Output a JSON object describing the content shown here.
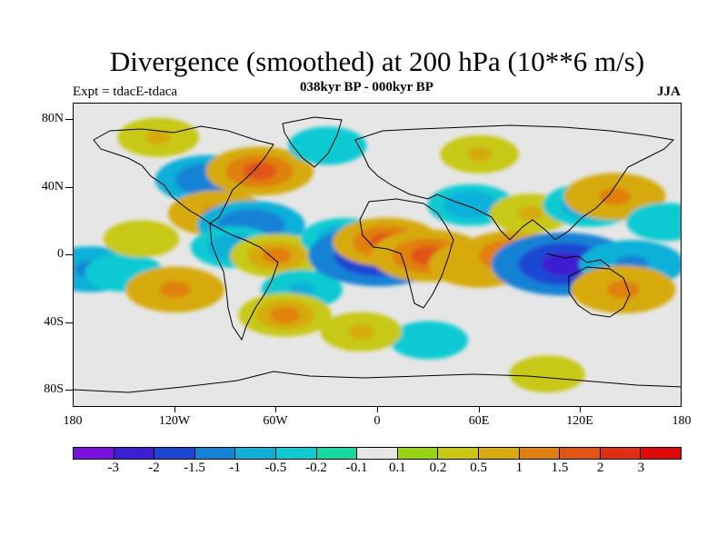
{
  "title": "Divergence (smoothed) at 200 hPa (10**6 m/s)",
  "subtitle": "038kyr BP - 000kyr BP",
  "left_label": "Expt = tdacE-tdaca",
  "right_label": "JJA",
  "y_axis_labels": [
    "80N",
    "40N",
    "0",
    "40S",
    "80S"
  ],
  "x_axis_labels": [
    "180",
    "120W",
    "60W",
    "0",
    "60E",
    "120E",
    "180"
  ],
  "colorbar": {
    "colors": [
      "#7a10dc",
      "#3c1ed2",
      "#1c46d2",
      "#1482d6",
      "#10b0d8",
      "#10cad2",
      "#18d6a0",
      "#e6e6e6",
      "#9ad214",
      "#c8c814",
      "#d6aa10",
      "#e08010",
      "#e05414",
      "#e02e12",
      "#e00808"
    ],
    "labels": [
      "-3",
      "-2",
      "-1.5",
      "-1",
      "-0.5",
      "-0.2",
      "-0.1",
      "0.1",
      "0.2",
      "0.5",
      "1",
      "1.5",
      "2",
      "3"
    ]
  },
  "chart_data": {
    "type": "heatmap",
    "variable": "Divergence (smoothed) at 200 hPa",
    "units": "10**6 m/s",
    "season": "JJA",
    "xlim": [
      -180,
      180
    ],
    "ylim": [
      -90,
      90
    ],
    "levels": [
      -3,
      -2,
      -1.5,
      -1,
      -0.5,
      -0.2,
      -0.1,
      0.1,
      0.2,
      0.5,
      1,
      1.5,
      2,
      3
    ],
    "anomalies": [
      {
        "lon": -170,
        "lat": -8,
        "value": -1.2
      },
      {
        "lon": -150,
        "lat": -10,
        "value": -0.5
      },
      {
        "lon": -120,
        "lat": -20,
        "value": 1.2
      },
      {
        "lon": -140,
        "lat": 10,
        "value": 0.4
      },
      {
        "lon": -100,
        "lat": 45,
        "value": -1.5
      },
      {
        "lon": -70,
        "lat": 50,
        "value": 1.5
      },
      {
        "lon": -95,
        "lat": 25,
        "value": 1.2
      },
      {
        "lon": -75,
        "lat": 18,
        "value": -1.5
      },
      {
        "lon": -85,
        "lat": 5,
        "value": -0.8
      },
      {
        "lon": -60,
        "lat": 0,
        "value": 1.0
      },
      {
        "lon": -45,
        "lat": -20,
        "value": -0.6
      },
      {
        "lon": -55,
        "lat": -35,
        "value": 1.0
      },
      {
        "lon": -20,
        "lat": 10,
        "value": -0.8
      },
      {
        "lon": 0,
        "lat": 0,
        "value": -2.6
      },
      {
        "lon": 5,
        "lat": 8,
        "value": 1.5
      },
      {
        "lon": 30,
        "lat": 0,
        "value": 1.8
      },
      {
        "lon": 60,
        "lat": -5,
        "value": 1.3
      },
      {
        "lon": 80,
        "lat": 0,
        "value": 1.6
      },
      {
        "lon": 55,
        "lat": 30,
        "value": -0.8
      },
      {
        "lon": 90,
        "lat": 25,
        "value": 0.6
      },
      {
        "lon": 110,
        "lat": -5,
        "value": -2.8
      },
      {
        "lon": 150,
        "lat": -5,
        "value": -1.4
      },
      {
        "lon": 125,
        "lat": 30,
        "value": -1.0
      },
      {
        "lon": 140,
        "lat": 35,
        "value": 1.3
      },
      {
        "lon": 145,
        "lat": -20,
        "value": 1.4
      },
      {
        "lon": 170,
        "lat": 20,
        "value": -0.5
      },
      {
        "lon": 30,
        "lat": -50,
        "value": -0.5
      },
      {
        "lon": -10,
        "lat": -45,
        "value": 0.6
      },
      {
        "lon": -30,
        "lat": 65,
        "value": -0.5
      },
      {
        "lon": 60,
        "lat": 60,
        "value": 0.5
      },
      {
        "lon": -130,
        "lat": 70,
        "value": 0.6
      },
      {
        "lon": 100,
        "lat": -70,
        "value": 0.4
      }
    ]
  }
}
